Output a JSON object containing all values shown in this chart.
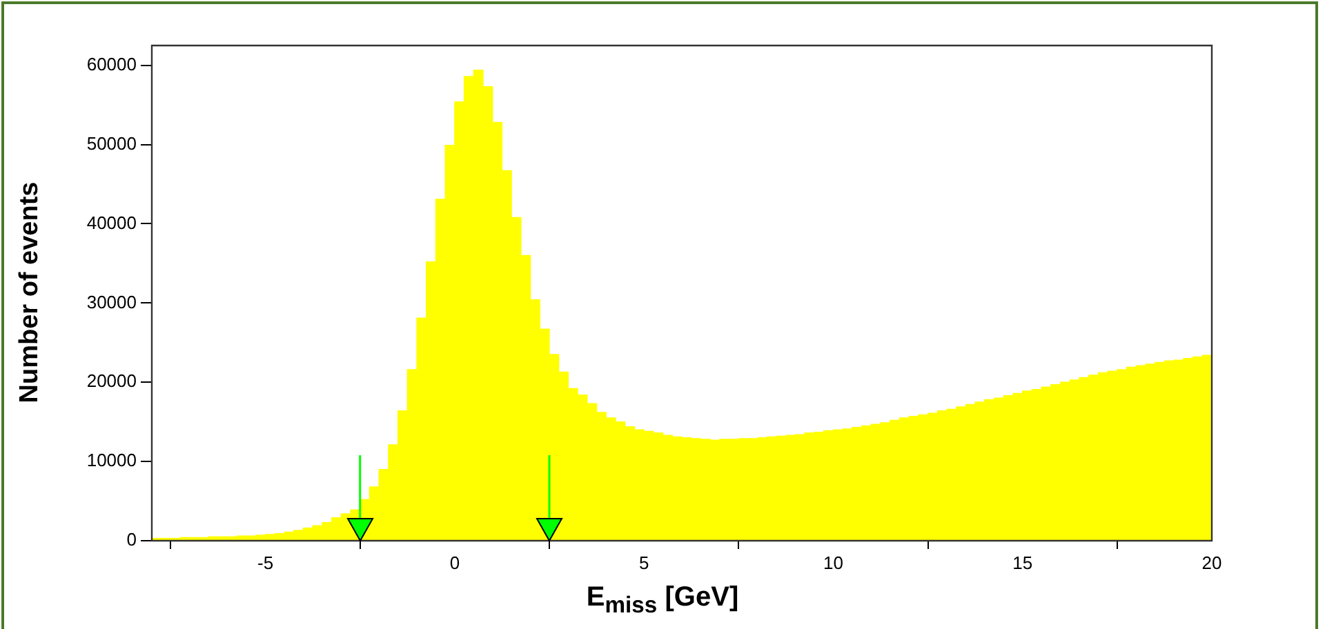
{
  "chart_data": {
    "type": "histogram",
    "xlabel": "E$_{miss}$ [GeV]",
    "ylabel": "Number of events",
    "color": "#ffff00",
    "bins": [
      -8,
      -7.75,
      -7.5,
      -7.25,
      -7,
      -6.75,
      -6.5,
      -6.25,
      -6,
      -5.75,
      -5.5,
      -5.25,
      -5,
      -4.75,
      -4.5,
      -4.25,
      -4,
      -3.75,
      -3.5,
      -3.25,
      -3,
      -2.75,
      -2.5,
      -2.25,
      -2,
      -1.75,
      -1.5,
      -1.25,
      -1,
      -0.75,
      -0.5,
      -0.25,
      0,
      0.25,
      0.5,
      0.75,
      1,
      1.25,
      1.5,
      1.75,
      2,
      2.25,
      2.5,
      2.75,
      3,
      3.25,
      3.5,
      3.75,
      4,
      4.25,
      4.5,
      4.75,
      5,
      5.25,
      5.5,
      5.75,
      6,
      6.25,
      6.5,
      6.75,
      7,
      7.25,
      7.5,
      7.75,
      8,
      8.25,
      8.5,
      8.75,
      9,
      9.25,
      9.5,
      9.75,
      10,
      10.25,
      10.5,
      10.75,
      11,
      11.25,
      11.5,
      11.75,
      12,
      12.25,
      12.5,
      12.75,
      13,
      13.25,
      13.5,
      13.75,
      14,
      14.25,
      14.5,
      14.75,
      15,
      15.25,
      15.5,
      15.75,
      16,
      16.25,
      16.5,
      16.75,
      17,
      17.25,
      17.5,
      17.75,
      18,
      18.25,
      18.5,
      18.75,
      19,
      19.25,
      19.5,
      19.75,
      20
    ],
    "values": [
      300,
      300,
      300,
      400,
      400,
      400,
      500,
      500,
      500,
      600,
      600,
      700,
      800,
      900,
      1100,
      1300,
      1600,
      1900,
      2300,
      2900,
      3400,
      3900,
      5200,
      6800,
      9000,
      12100,
      16400,
      21600,
      28100,
      35200,
      43100,
      49900,
      55400,
      58600,
      59400,
      57300,
      52800,
      46700,
      40800,
      36000,
      30400,
      26700,
      23500,
      21300,
      19200,
      18400,
      17300,
      16200,
      15500,
      15000,
      14400,
      14000,
      13800,
      13600,
      13300,
      13100,
      13000,
      12900,
      12800,
      12700,
      12800,
      12800,
      12900,
      12900,
      13000,
      13100,
      13200,
      13300,
      13400,
      13600,
      13700,
      13900,
      14000,
      14100,
      14300,
      14500,
      14700,
      14900,
      15200,
      15500,
      15700,
      15900,
      16100,
      16400,
      16600,
      16900,
      17200,
      17500,
      17800,
      18000,
      18300,
      18600,
      18900,
      19100,
      19400,
      19700,
      20000,
      20300,
      20600,
      20900,
      21200,
      21400,
      21600,
      21900,
      22100,
      22300,
      22500,
      22700,
      22800,
      23000,
      23200,
      23400
    ],
    "xlim": [
      -8,
      20
    ],
    "xticks": [
      -5,
      0,
      5,
      10,
      15,
      20
    ],
    "ylim": [
      0,
      62500
    ],
    "yticks": [
      0,
      10000,
      20000,
      30000,
      40000,
      50000,
      60000
    ],
    "ref_lines": [
      {
        "axis": "x",
        "value": -2.5,
        "color": "#00ff00"
      },
      {
        "axis": "x",
        "value": 2.5,
        "color": "#00ff00"
      }
    ]
  }
}
